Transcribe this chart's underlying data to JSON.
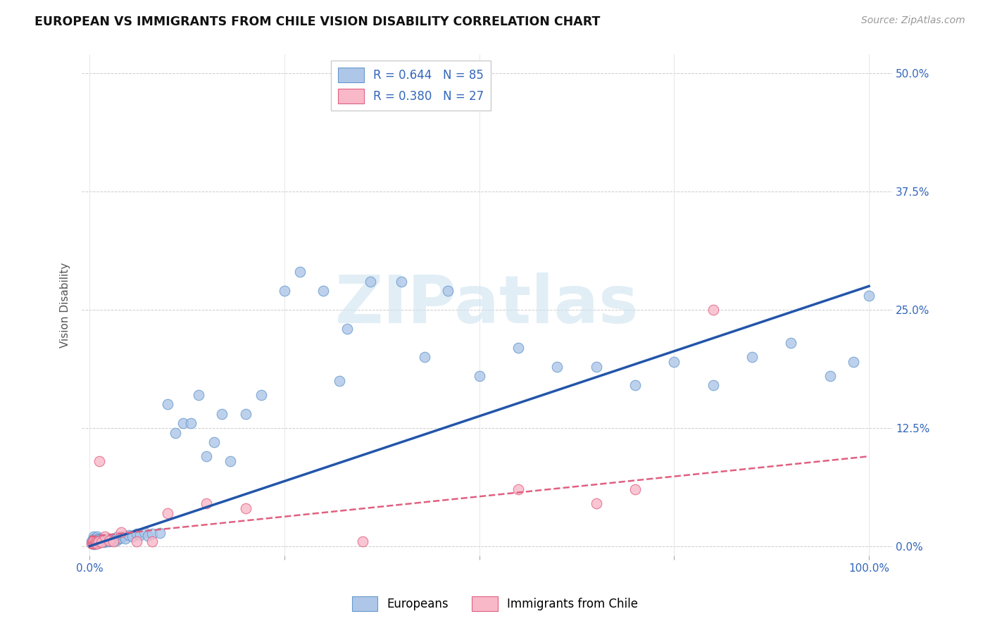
{
  "title": "EUROPEAN VS IMMIGRANTS FROM CHILE VISION DISABILITY CORRELATION CHART",
  "source": "Source: ZipAtlas.com",
  "ylabel": "Vision Disability",
  "background_color": "#ffffff",
  "european_color": "#aec6e8",
  "european_edge_color": "#6699cc",
  "chile_color": "#f9b8c8",
  "chile_edge_color": "#e06080",
  "line_european_color": "#2255aa",
  "line_chile_color": "#e06080",
  "watermark_text": "ZIPatlas",
  "watermark_color": "#d0e4f0",
  "legend_eu_label": "R = 0.644   N = 85",
  "legend_ch_label": "R = 0.380   N = 27",
  "legend_text_color": "#3366bb",
  "bottom_eu_label": "Europeans",
  "bottom_ch_label": "Immigrants from Chile",
  "ytick_positions": [
    0.0,
    0.125,
    0.25,
    0.375,
    0.5
  ],
  "ytick_labels": [
    "0.0%",
    "12.5%",
    "25.0%",
    "37.5%",
    "50.0%"
  ],
  "xtick_positions": [
    0.0,
    0.25,
    0.5,
    0.75,
    1.0
  ],
  "xtick_labels": [
    "0.0%",
    "",
    "",
    "",
    "100.0%"
  ],
  "eu_trend_x0": 0.0,
  "eu_trend_y0": 0.0,
  "eu_trend_x1": 1.0,
  "eu_trend_y1": 0.275,
  "ch_trend_x0": 0.0,
  "ch_trend_y0": 0.01,
  "ch_trend_x1": 1.0,
  "ch_trend_y1": 0.095,
  "eu_x": [
    0.002,
    0.003,
    0.004,
    0.004,
    0.005,
    0.005,
    0.005,
    0.006,
    0.006,
    0.007,
    0.007,
    0.008,
    0.008,
    0.009,
    0.009,
    0.01,
    0.01,
    0.01,
    0.011,
    0.011,
    0.012,
    0.012,
    0.013,
    0.014,
    0.015,
    0.015,
    0.016,
    0.017,
    0.018,
    0.019,
    0.02,
    0.021,
    0.022,
    0.023,
    0.025,
    0.026,
    0.028,
    0.03,
    0.032,
    0.034,
    0.036,
    0.038,
    0.04,
    0.043,
    0.046,
    0.05,
    0.055,
    0.06,
    0.065,
    0.07,
    0.075,
    0.08,
    0.09,
    0.1,
    0.11,
    0.12,
    0.13,
    0.14,
    0.15,
    0.16,
    0.17,
    0.18,
    0.2,
    0.22,
    0.25,
    0.27,
    0.3,
    0.33,
    0.36,
    0.4,
    0.43,
    0.46,
    0.5,
    0.55,
    0.6,
    0.65,
    0.7,
    0.75,
    0.8,
    0.85,
    0.9,
    0.95,
    0.98,
    1.0,
    0.32
  ],
  "eu_y": [
    0.005,
    0.003,
    0.004,
    0.007,
    0.002,
    0.006,
    0.01,
    0.004,
    0.008,
    0.003,
    0.007,
    0.005,
    0.009,
    0.004,
    0.008,
    0.003,
    0.006,
    0.01,
    0.005,
    0.008,
    0.004,
    0.007,
    0.006,
    0.005,
    0.004,
    0.008,
    0.006,
    0.005,
    0.007,
    0.004,
    0.006,
    0.005,
    0.007,
    0.008,
    0.005,
    0.007,
    0.006,
    0.008,
    0.007,
    0.006,
    0.01,
    0.008,
    0.009,
    0.011,
    0.008,
    0.012,
    0.01,
    0.013,
    0.012,
    0.015,
    0.011,
    0.013,
    0.014,
    0.15,
    0.12,
    0.13,
    0.13,
    0.16,
    0.095,
    0.11,
    0.14,
    0.09,
    0.14,
    0.16,
    0.27,
    0.29,
    0.27,
    0.23,
    0.28,
    0.28,
    0.2,
    0.27,
    0.18,
    0.21,
    0.19,
    0.19,
    0.17,
    0.195,
    0.17,
    0.2,
    0.215,
    0.18,
    0.195,
    0.265,
    0.175
  ],
  "ch_x": [
    0.002,
    0.003,
    0.004,
    0.005,
    0.005,
    0.006,
    0.007,
    0.008,
    0.009,
    0.01,
    0.011,
    0.012,
    0.015,
    0.02,
    0.025,
    0.03,
    0.04,
    0.06,
    0.08,
    0.1,
    0.15,
    0.2,
    0.35,
    0.55,
    0.65,
    0.7,
    0.8
  ],
  "ch_y": [
    0.003,
    0.004,
    0.003,
    0.005,
    0.006,
    0.003,
    0.004,
    0.003,
    0.004,
    0.003,
    0.005,
    0.09,
    0.004,
    0.01,
    0.006,
    0.005,
    0.015,
    0.005,
    0.005,
    0.035,
    0.045,
    0.04,
    0.005,
    0.06,
    0.045,
    0.06,
    0.25
  ]
}
